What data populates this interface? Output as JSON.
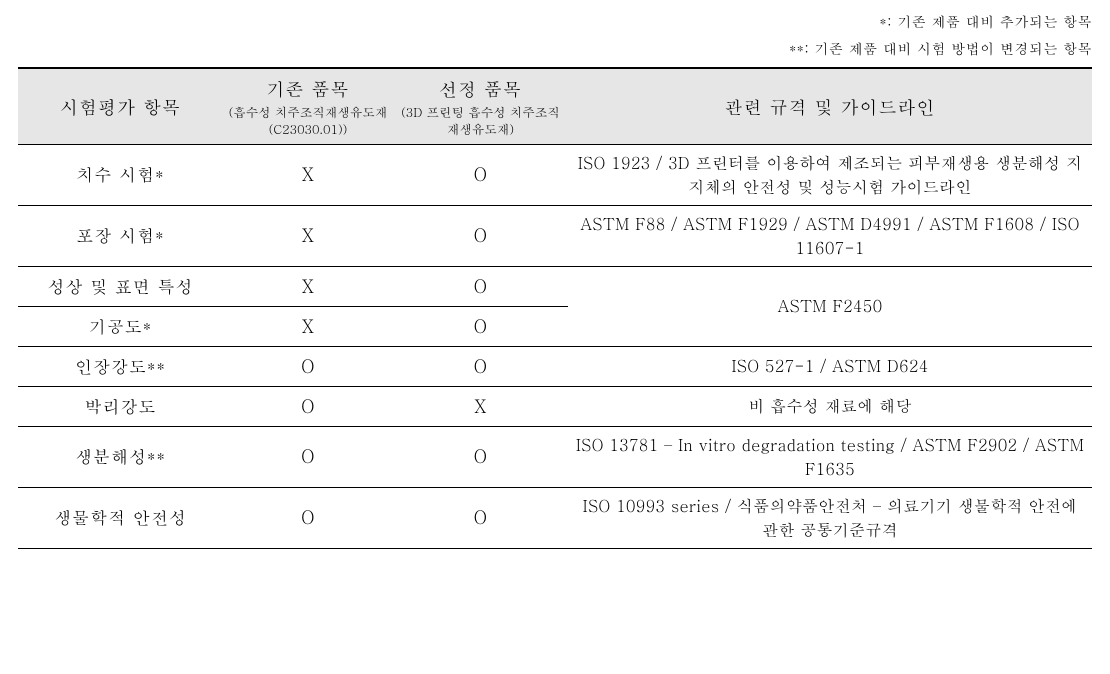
{
  "notes": {
    "n1": "*: 기존 제품 대비 추가되는 항목",
    "n2": "**: 기존 제품 대비 시험 방법이 변경되는 항목"
  },
  "headers": {
    "c1": "시험평가 항목",
    "c2_main": "기존 품목",
    "c2_sub": "(흡수성\n치주조직재생유도재\n(C23030.01))",
    "c3_main": "선정 품목",
    "c3_sub": "(3D 프린팅 흡수성\n치주조직재생유도재)",
    "c4": "관련 규격 및 가이드라인"
  },
  "rows": {
    "r1": {
      "label": "치수 시험*",
      "existing": "X",
      "selected": "O",
      "std": "ISO 1923 / 3D 프린터를 이용하여 제조되는 피부재생용 생분해성 지지체의 안전성 및 성능시험 가이드라인"
    },
    "r2": {
      "label": "포장 시험*",
      "existing": "X",
      "selected": "O",
      "std": "ASTM F88 / ASTM F1929 / ASTM D4991 / ASTM F1608 / ISO 11607-1"
    },
    "r3": {
      "label": "성상 및 표면 특성",
      "existing": "X",
      "selected": "O"
    },
    "r34_std": "ASTM F2450",
    "r4": {
      "label": "기공도*",
      "existing": "X",
      "selected": "O"
    },
    "r5": {
      "label": "인장강도**",
      "existing": "O",
      "selected": "O",
      "std": "ISO 527-1 / ASTM D624"
    },
    "r6": {
      "label": "박리강도",
      "existing": "O",
      "selected": "X",
      "std": "비 흡수성 재료에 해당"
    },
    "r7": {
      "label": "생분해성**",
      "existing": "O",
      "selected": "O",
      "std": "ISO 13781 – In vitro degradation testing / ASTM F2902 / ASTM F1635"
    },
    "r8": {
      "label": "생물학적 안전성",
      "existing": "O",
      "selected": "O",
      "std": "ISO 10993 series / 식품의약품안전처 – 의료기기 생물학적 안전에 관한 공통기준규격"
    }
  },
  "colors": {
    "header_bg": "#e6e6e6",
    "border": "#000000",
    "text": "#000000",
    "background": "#ffffff"
  },
  "fonts": {
    "body_size": 17,
    "header_main_size": 18,
    "header_sub_size": 12.5,
    "notes_size": 14
  }
}
